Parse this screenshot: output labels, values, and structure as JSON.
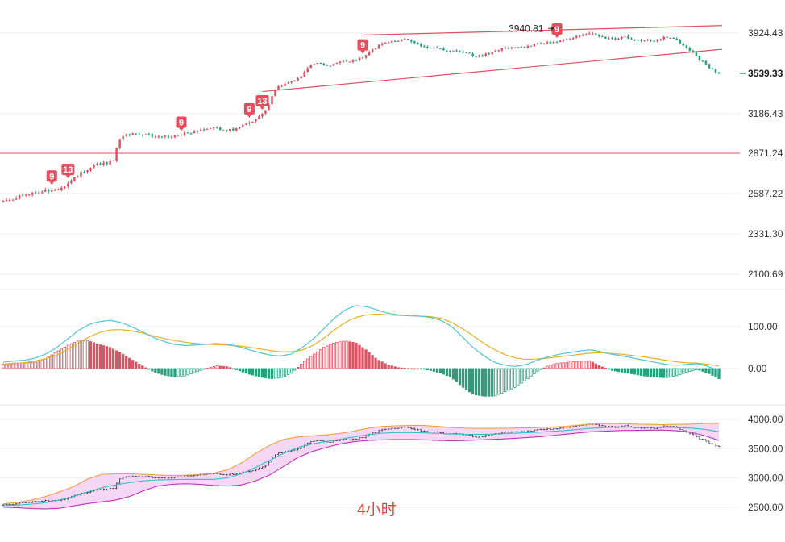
{
  "chart_data": [
    {
      "type": "candlestick",
      "title": "",
      "timeframe_label": "4小时",
      "y_ticks": [
        3924.43,
        3186.43,
        2871.24,
        2587.22,
        2331.3,
        2100.69
      ],
      "y_tick_labels": [
        "3924.43",
        "3186.43",
        "2871.24",
        "2587.22",
        "2331.30",
        "2100.69"
      ],
      "last_price": 3539.33,
      "last_price_label": "3539.33",
      "high_annotation": {
        "value": 3940.81,
        "label": "3940.81"
      },
      "horizontal_level": 2871.24,
      "candle_anchor_closes": [
        2540,
        2548,
        2556,
        2565,
        2572,
        2580,
        2588,
        2597,
        2603,
        2610,
        2618,
        2626,
        2638,
        2660,
        2690,
        2720,
        2748,
        2765,
        2780,
        2792,
        2800,
        2808,
        2830,
        2980,
        3010,
        3025,
        3030,
        3028,
        3022,
        3015,
        3008,
        3000,
        3002,
        3005,
        3010,
        3018,
        3028,
        3040,
        3050,
        3062,
        3070,
        3078,
        3072,
        3060,
        3050,
        3055,
        3065,
        3080,
        3098,
        3118,
        3145,
        3178,
        3210,
        3300,
        3395,
        3430,
        3450,
        3460,
        3478,
        3500,
        3560,
        3610,
        3650,
        3630,
        3615,
        3620,
        3635,
        3648,
        3655,
        3660,
        3672,
        3690,
        3722,
        3750,
        3790,
        3820,
        3840,
        3850,
        3855,
        3858,
        3862,
        3850,
        3830,
        3805,
        3790,
        3780,
        3775,
        3770,
        3765,
        3760,
        3752,
        3742,
        3730,
        3715,
        3702,
        3705,
        3720,
        3740,
        3758,
        3770,
        3775,
        3778,
        3782,
        3790,
        3800,
        3810,
        3818,
        3825,
        3830,
        3836,
        3845,
        3858,
        3870,
        3885,
        3900,
        3915,
        3930,
        3925,
        3895,
        3880,
        3870,
        3872,
        3880,
        3890,
        3880,
        3868,
        3860,
        3855,
        3850,
        3845,
        3865,
        3880,
        3892,
        3870,
        3845,
        3810,
        3770,
        3730,
        3680,
        3640,
        3600,
        3560,
        3539.33
      ],
      "sequential_markers": [
        {
          "label": "9",
          "candle": 15
        },
        {
          "label": "13",
          "candle": 20
        },
        {
          "label": "9",
          "candle": 55
        },
        {
          "label": "9",
          "candle": 76
        },
        {
          "label": "13",
          "candle": 80
        },
        {
          "label": "9",
          "candle": 111
        },
        {
          "label": "9",
          "candle": 171
        }
      ],
      "trend_channel": {
        "upper": {
          "from": {
            "candle": 111,
            "value": 3905
          },
          "to": {
            "candle": 222,
            "value": 3980
          }
        },
        "lower": {
          "from": {
            "candle": 80,
            "value": 3380
          },
          "to": {
            "candle": 222,
            "value": 3770
          }
        }
      },
      "colors": {
        "up": "#e05060",
        "down": "#26a17b",
        "lines": "#e05060",
        "price_tag": "#26a17b"
      }
    },
    {
      "type": "macd",
      "y_ticks": [
        100.0,
        0.0
      ],
      "y_tick_labels": [
        "100.00",
        "0.00"
      ],
      "dif_anchors": [
        15,
        18,
        20,
        25,
        35,
        50,
        70,
        90,
        105,
        112,
        115,
        110,
        100,
        88,
        75,
        65,
        58,
        55,
        56,
        58,
        60,
        58,
        52,
        45,
        38,
        32,
        30,
        35,
        50,
        70,
        95,
        120,
        140,
        150,
        148,
        140,
        132,
        128,
        126,
        125,
        122,
        115,
        100,
        75,
        50,
        30,
        15,
        8,
        5,
        10,
        20,
        28,
        34,
        38,
        42,
        45,
        40,
        34,
        30,
        25,
        20,
        15,
        10,
        8,
        10,
        12,
        5,
        -5
      ],
      "dea_anchors": [
        10,
        12,
        14,
        18,
        24,
        32,
        45,
        60,
        75,
        86,
        92,
        93,
        90,
        85,
        78,
        72,
        67,
        63,
        60,
        58,
        57,
        56,
        54,
        51,
        47,
        43,
        40,
        40,
        44,
        55,
        72,
        92,
        110,
        122,
        128,
        130,
        128,
        127,
        126,
        125,
        124,
        120,
        110,
        95,
        78,
        60,
        45,
        33,
        25,
        22,
        23,
        25,
        28,
        31,
        34,
        37,
        38,
        36,
        34,
        31,
        28,
        24,
        20,
        16,
        14,
        13,
        10,
        6
      ],
      "colors": {
        "dif": "#4fc3d8",
        "dea": "#e8b020",
        "hist_up": "#e05060",
        "hist_down": "#26a17b"
      }
    },
    {
      "type": "line",
      "y_ticks": [
        4000.0,
        3500.0,
        3000.0,
        2500.0
      ],
      "y_tick_labels": [
        "4000.00",
        "3500.00",
        "3000.00",
        "2500.00"
      ],
      "upper_band_anchors": [
        2555,
        2580,
        2620,
        2680,
        2760,
        2850,
        2980,
        3060,
        3070,
        3070,
        3060,
        3050,
        3040,
        3045,
        3060,
        3080,
        3140,
        3260,
        3420,
        3560,
        3660,
        3700,
        3720,
        3735,
        3760,
        3800,
        3850,
        3880,
        3890,
        3895,
        3895,
        3880,
        3860,
        3850,
        3845,
        3845,
        3850,
        3855,
        3860,
        3870,
        3880,
        3900,
        3920,
        3930,
        3928,
        3920,
        3915,
        3910,
        3915,
        3920,
        3930,
        3935
      ],
      "lower_band_anchors": [
        2500,
        2490,
        2475,
        2470,
        2480,
        2520,
        2560,
        2590,
        2620,
        2680,
        2780,
        2860,
        2890,
        2900,
        2890,
        2870,
        2860,
        2880,
        2950,
        3050,
        3200,
        3350,
        3450,
        3520,
        3580,
        3620,
        3640,
        3650,
        3655,
        3655,
        3650,
        3640,
        3635,
        3640,
        3650,
        3660,
        3670,
        3685,
        3700,
        3720,
        3745,
        3770,
        3790,
        3800,
        3810,
        3812,
        3815,
        3818,
        3805,
        3780,
        3720,
        3640
      ],
      "middle_band_anchors": [
        2525,
        2535,
        2550,
        2575,
        2620,
        2680,
        2760,
        2830,
        2880,
        2920,
        2950,
        2965,
        2970,
        2975,
        2975,
        2975,
        3000,
        3070,
        3180,
        3300,
        3420,
        3520,
        3580,
        3620,
        3660,
        3700,
        3740,
        3765,
        3775,
        3775,
        3770,
        3760,
        3750,
        3745,
        3745,
        3750,
        3760,
        3770,
        3780,
        3795,
        3810,
        3830,
        3850,
        3862,
        3868,
        3866,
        3865,
        3864,
        3860,
        3850,
        3830,
        3790
      ],
      "colors": {
        "upper": "#f0a040",
        "lower": "#c030c0",
        "middle": "#30c0c8",
        "fill": "#f2c8f0",
        "bars": "#333333"
      }
    }
  ]
}
